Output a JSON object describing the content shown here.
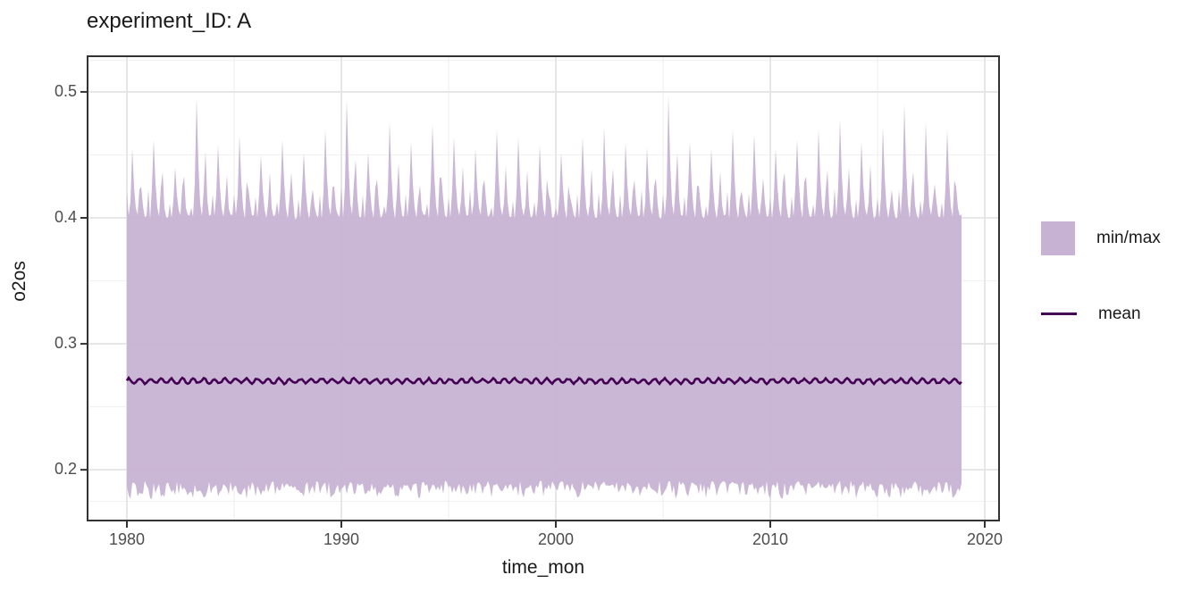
{
  "title": "experiment_ID: A",
  "axes": {
    "x_label": "time_mon",
    "y_label": "o2os"
  },
  "legend": {
    "ribbon_label": "min/max",
    "line_label": "mean"
  },
  "colors": {
    "ribbon_fill": "#c7b2d3",
    "mean_line": "#440154",
    "grid_major": "#e4e4e4",
    "grid_minor": "#f1f1f1",
    "panel_border": "#333333",
    "tick_mark": "#333333",
    "tick_label": "#4d4d4d",
    "text": "#1a1a1a",
    "panel_bg": "#ffffff"
  },
  "chart_data": {
    "type": "area",
    "subtype": "ribbon-minmax-with-mean-line",
    "title": "experiment_ID: A",
    "xlabel": "time_mon",
    "ylabel": "o2os",
    "legend_position": "right",
    "grid": true,
    "xlim": [
      1978.125,
      2020.708
    ],
    "ylim": [
      0.159,
      0.529
    ],
    "x_ticks": [
      1980,
      1990,
      2000,
      2010,
      2020
    ],
    "x_minor_ticks": [
      1985,
      1995,
      2005,
      2015
    ],
    "y_ticks": [
      0.2,
      0.3,
      0.4,
      0.5
    ],
    "y_minor_ticks": [
      0.175,
      0.25,
      0.35,
      0.45,
      0.525
    ],
    "x_data_range": [
      1980.0,
      2018.9167
    ],
    "points_per_year": 12,
    "seed": 7,
    "series": [
      {
        "name": "min/max",
        "kind": "ribbon",
        "max_baseline": 0.4,
        "max_spike_range": [
          0.41,
          0.497
        ],
        "min_baseline": 0.1915,
        "min_dip": 0.0115,
        "annual_peaks": [
          0.455,
          0.462,
          0.44,
          0.495,
          0.458,
          0.465,
          0.45,
          0.462,
          0.452,
          0.47,
          0.494,
          0.452,
          0.476,
          0.46,
          0.474,
          0.464,
          0.455,
          0.47,
          0.464,
          0.458,
          0.452,
          0.464,
          0.472,
          0.46,
          0.456,
          0.497,
          0.46,
          0.455,
          0.47,
          0.466,
          0.455,
          0.462,
          0.47,
          0.478,
          0.46,
          0.472,
          0.49,
          0.476,
          0.47
        ],
        "annual_peaks_years_start": 1980
      },
      {
        "name": "mean",
        "kind": "line",
        "base": 0.2705,
        "seasonal_amplitude": 0.0018,
        "seasonal_period_months": 6,
        "noise": 0.0007
      }
    ]
  }
}
